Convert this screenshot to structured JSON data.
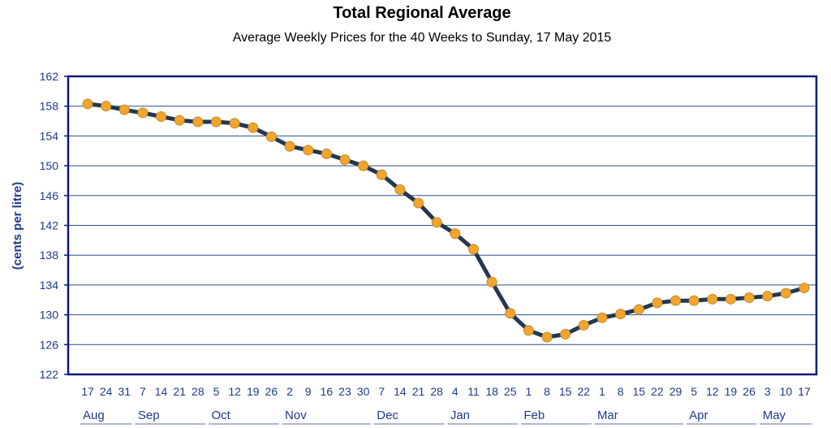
{
  "chart_data": {
    "type": "line",
    "title": "Total Regional Average",
    "subtitle": "Average Weekly Prices for the 40 Weeks to Sunday, 17 May 2015",
    "xlabel": "",
    "ylabel": "(cents per litre)",
    "ylim": [
      122,
      162
    ],
    "yticks": [
      122,
      126,
      130,
      134,
      138,
      142,
      146,
      150,
      154,
      158,
      162
    ],
    "grid": true,
    "x": [
      "17",
      "24",
      "31",
      "7",
      "14",
      "21",
      "28",
      "5",
      "12",
      "19",
      "26",
      "2",
      "9",
      "16",
      "23",
      "30",
      "7",
      "14",
      "21",
      "28",
      "4",
      "11",
      "18",
      "25",
      "1",
      "8",
      "15",
      "22",
      "1",
      "8",
      "15",
      "22",
      "29",
      "5",
      "12",
      "19",
      "26",
      "3",
      "10",
      "17"
    ],
    "months": [
      {
        "label": "Aug",
        "start": 0,
        "end": 2
      },
      {
        "label": "Sep",
        "start": 3,
        "end": 6
      },
      {
        "label": "Oct",
        "start": 7,
        "end": 10
      },
      {
        "label": "Nov",
        "start": 11,
        "end": 15
      },
      {
        "label": "Dec",
        "start": 16,
        "end": 19
      },
      {
        "label": "Jan",
        "start": 20,
        "end": 23
      },
      {
        "label": "Feb",
        "start": 24,
        "end": 27
      },
      {
        "label": "Mar",
        "start": 28,
        "end": 32
      },
      {
        "label": "Apr",
        "start": 33,
        "end": 36
      },
      {
        "label": "May",
        "start": 37,
        "end": 39
      }
    ],
    "series": [
      {
        "values": [
          158.3,
          158.0,
          157.5,
          157.1,
          156.6,
          156.1,
          155.9,
          155.9,
          155.7,
          155.1,
          153.9,
          152.6,
          152.1,
          151.6,
          150.8,
          150.0,
          148.8,
          146.8,
          145.0,
          142.4,
          140.9,
          138.8,
          134.4,
          130.2,
          127.9,
          127.0,
          127.4,
          128.6,
          129.6,
          130.1,
          130.7,
          131.6,
          131.9,
          131.9,
          132.1,
          132.1,
          132.3,
          132.5,
          132.9,
          133.6
        ]
      }
    ],
    "colors": {
      "line": "#23384f",
      "marker_fill": "#f0a530",
      "marker_stroke": "#c98a20",
      "frame": "#0b1a7a",
      "grid": "#2f4f8f",
      "text": "#1f3a8a"
    }
  }
}
